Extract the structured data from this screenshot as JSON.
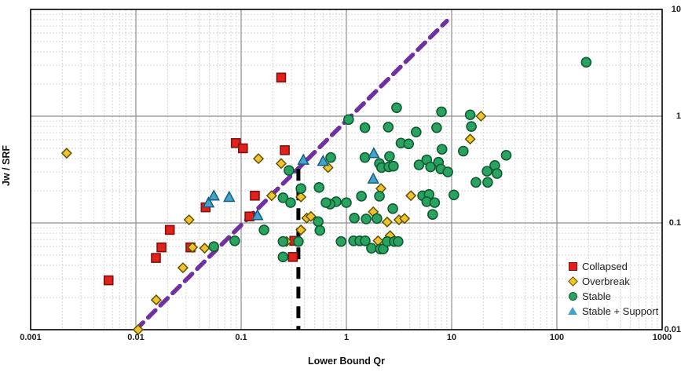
{
  "chart_data": {
    "type": "scatter",
    "title": "",
    "xlabel": "Lower Bound Qr",
    "ylabel": "Jw / SRF",
    "xscale": "log",
    "yscale": "log",
    "xlim": [
      0.001,
      1000
    ],
    "ylim": [
      0.01,
      10
    ],
    "x_tick_labels": [
      "0.001",
      "0.01",
      "0.1",
      "1",
      "10",
      "100",
      "1000"
    ],
    "y_tick_labels": [
      "10",
      "1",
      "0.1",
      "0.01"
    ],
    "grid": "log major and minor gridlines on",
    "legend_position": "inside bottom-right",
    "series": [
      {
        "name": "Collapsed",
        "marker": "square",
        "fill": "#e3201b",
        "edge": "#7d120e",
        "points": [
          [
            0.0055,
            0.029
          ],
          [
            0.0155,
            0.047
          ],
          [
            0.0175,
            0.059
          ],
          [
            0.021,
            0.086
          ],
          [
            0.033,
            0.059
          ],
          [
            0.046,
            0.14
          ],
          [
            0.089,
            0.56
          ],
          [
            0.104,
            0.5
          ],
          [
            0.12,
            0.115
          ],
          [
            0.135,
            0.18
          ],
          [
            0.24,
            2.3
          ],
          [
            0.26,
            0.48
          ],
          [
            0.32,
            0.068
          ],
          [
            0.31,
            0.048
          ]
        ]
      },
      {
        "name": "Overbreak",
        "marker": "diamond",
        "fill": "#efc32f",
        "edge": "#5f5200",
        "points": [
          [
            0.0022,
            0.45
          ],
          [
            0.0105,
            0.01
          ],
          [
            0.0156,
            0.019
          ],
          [
            0.028,
            0.038
          ],
          [
            0.032,
            0.107
          ],
          [
            0.0345,
            0.059
          ],
          [
            0.045,
            0.058
          ],
          [
            0.146,
            0.4
          ],
          [
            0.195,
            0.18
          ],
          [
            0.24,
            0.36
          ],
          [
            0.27,
            0.067
          ],
          [
            0.37,
            0.086
          ],
          [
            0.37,
            0.175
          ],
          [
            0.42,
            0.111
          ],
          [
            0.46,
            0.115
          ],
          [
            0.67,
            0.33
          ],
          [
            1.8,
            0.127
          ],
          [
            2.0,
            0.068
          ],
          [
            2.13,
            0.21
          ],
          [
            2.44,
            0.102
          ],
          [
            2.6,
            0.076
          ],
          [
            3.16,
            0.107
          ],
          [
            3.57,
            0.11
          ],
          [
            4.1,
            0.18
          ],
          [
            15,
            0.61
          ],
          [
            19,
            1.0
          ]
        ]
      },
      {
        "name": "Stable",
        "marker": "circle",
        "fill": "#2aa360",
        "edge": "#0f5c33",
        "points": [
          [
            1.05,
            0.93
          ],
          [
            190,
            3.2
          ],
          [
            1.5,
            0.78
          ],
          [
            2.5,
            0.79
          ],
          [
            3.0,
            1.2
          ],
          [
            4.6,
            0.71
          ],
          [
            8.0,
            1.1
          ],
          [
            7.2,
            0.78
          ],
          [
            15,
            1.03
          ],
          [
            15.4,
            0.8
          ],
          [
            3.3,
            0.56
          ],
          [
            3.9,
            0.55
          ],
          [
            1.5,
            0.41
          ],
          [
            2.57,
            0.42
          ],
          [
            8.1,
            0.49
          ],
          [
            12.9,
            0.47
          ],
          [
            2.06,
            0.36
          ],
          [
            2.16,
            0.33
          ],
          [
            2.53,
            0.335
          ],
          [
            2.8,
            0.34
          ],
          [
            4.9,
            0.35
          ],
          [
            5.8,
            0.39
          ],
          [
            6.3,
            0.335
          ],
          [
            7.5,
            0.37
          ],
          [
            7.9,
            0.32
          ],
          [
            9.2,
            0.3
          ],
          [
            21.7,
            0.305
          ],
          [
            25.7,
            0.345
          ],
          [
            27,
            0.29
          ],
          [
            22,
            0.24
          ],
          [
            17,
            0.24
          ],
          [
            33,
            0.43
          ],
          [
            0.71,
            0.41
          ],
          [
            2.06,
            0.178
          ],
          [
            1.39,
            0.178
          ],
          [
            1.0,
            0.155
          ],
          [
            0.8,
            0.158
          ],
          [
            0.7,
            0.15
          ],
          [
            5.3,
            0.18
          ],
          [
            6.1,
            0.185
          ],
          [
            5.8,
            0.158
          ],
          [
            6.9,
            0.155
          ],
          [
            10.5,
            0.183
          ],
          [
            2.76,
            0.136
          ],
          [
            6.6,
            0.12
          ],
          [
            1.19,
            0.111
          ],
          [
            1.54,
            0.109
          ],
          [
            1.95,
            0.11
          ],
          [
            0.25,
            0.172
          ],
          [
            0.295,
            0.155
          ],
          [
            0.37,
            0.21
          ],
          [
            0.55,
            0.215
          ],
          [
            0.64,
            0.155
          ],
          [
            0.285,
            0.31
          ],
          [
            0.055,
            0.06
          ],
          [
            0.087,
            0.068
          ],
          [
            0.165,
            0.086
          ],
          [
            0.35,
            0.067
          ],
          [
            0.25,
            0.067
          ],
          [
            0.25,
            0.048
          ],
          [
            0.54,
            0.103
          ],
          [
            0.56,
            0.085
          ],
          [
            0.89,
            0.067
          ],
          [
            1.17,
            0.068
          ],
          [
            1.34,
            0.068
          ],
          [
            1.51,
            0.068
          ],
          [
            1.73,
            0.058
          ],
          [
            2.1,
            0.057
          ],
          [
            2.24,
            0.057
          ],
          [
            2.44,
            0.067
          ],
          [
            2.85,
            0.067
          ],
          [
            3.1,
            0.067
          ]
        ]
      },
      {
        "name": "Stable + Support",
        "marker": "triangle",
        "fill": "#44a3cb",
        "edge": "#175d7d",
        "points": [
          [
            0.049,
            0.155
          ],
          [
            0.055,
            0.18
          ],
          [
            0.077,
            0.175
          ],
          [
            0.143,
            0.118
          ],
          [
            0.39,
            0.39
          ],
          [
            0.6,
            0.38
          ],
          [
            1.82,
            0.45
          ],
          [
            1.8,
            0.26
          ]
        ]
      }
    ],
    "reference_lines": [
      {
        "name": "diagonal-dashed-line",
        "color": "#7030a0",
        "style": "dashed",
        "from": [
          0.01,
          0.01
        ],
        "to": [
          9.0,
          7.8
        ]
      },
      {
        "name": "vertical-dashed-line",
        "color": "#000000",
        "style": "dashed",
        "x": 0.35,
        "y_from": 0.01,
        "y_to": 0.32
      }
    ],
    "highlight_box": {
      "x_from": 0.235,
      "x_to": 0.45,
      "y_from": 0.037,
      "y_to": 0.098,
      "color": "#ff0000"
    },
    "colors": {
      "grid_minor": "#d6d6d6",
      "grid_major": "#8c8c8c",
      "plot_border": "#000000"
    }
  }
}
